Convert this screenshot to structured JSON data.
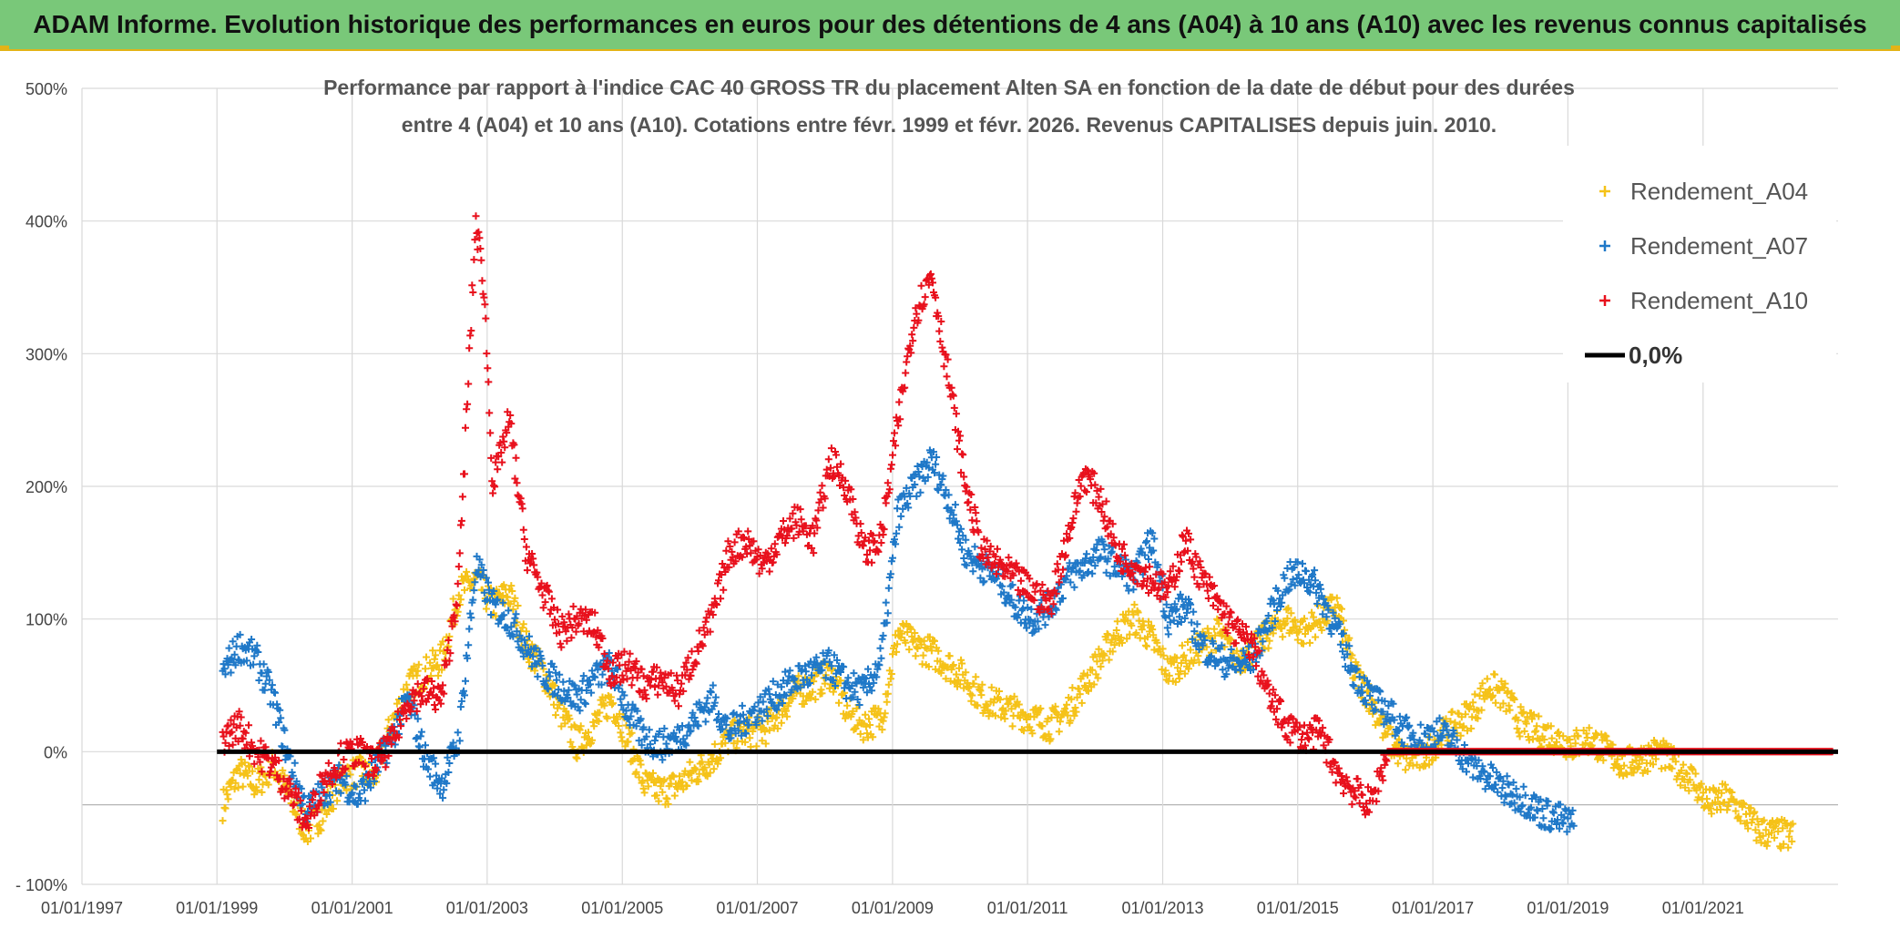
{
  "banner": {
    "title": "ADAM Informe. Evolution historique des performances en euros pour des détentions de 4 ans (A04) à 10 ans (A10) avec les revenus connus capitalisés"
  },
  "chart_data": {
    "type": "scatter",
    "title_line1": "Performance par rapport à l'indice CAC 40 GROSS TR  du placement Alten SA en fonction de la date de début pour des durées",
    "title_line2": "entre 4 (A04) et 10 ans (A10). Cotations entre févr. 1999 et févr. 2026. Revenus CAPITALISES depuis juin. 2010.",
    "xlabel": "",
    "ylabel": "",
    "xlim": [
      "1997-01-01",
      "2023-01-01"
    ],
    "ylim": [
      -100,
      500
    ],
    "x_ticks": [
      "01/01/1997",
      "01/01/1999",
      "01/01/2001",
      "01/01/2003",
      "01/01/2005",
      "01/01/2007",
      "01/01/2009",
      "01/01/2011",
      "01/01/2013",
      "01/01/2015",
      "01/01/2017",
      "01/01/2019",
      "01/01/2021"
    ],
    "y_ticks": [
      "- 100%",
      "0%",
      "100%",
      "200%",
      "300%",
      "400%",
      "500%"
    ],
    "y_tick_values": [
      -100,
      0,
      100,
      200,
      300,
      400,
      500
    ],
    "grid": true,
    "legend_position": "top-right",
    "colors": {
      "Rendement_A04": "#f5c218",
      "Rendement_A07": "#1f78c8",
      "Rendement_A10": "#e8101c",
      "zero_line": "#000000"
    },
    "series": [
      {
        "name": "Rendement_A04",
        "marker": "+",
        "points": [
          [
            "1999-02-01",
            -40
          ],
          [
            "1999-05-01",
            -15
          ],
          [
            "1999-08-01",
            -25
          ],
          [
            "1999-11-01",
            -10
          ],
          [
            "2000-02-01",
            -35
          ],
          [
            "2000-05-01",
            -60
          ],
          [
            "2000-08-01",
            -45
          ],
          [
            "2000-11-01",
            -20
          ],
          [
            "2001-02-01",
            -15
          ],
          [
            "2001-05-01",
            -20
          ],
          [
            "2001-08-01",
            20
          ],
          [
            "2001-11-01",
            50
          ],
          [
            "2002-02-01",
            60
          ],
          [
            "2002-05-01",
            70
          ],
          [
            "2002-08-01",
            120
          ],
          [
            "2002-11-01",
            130
          ],
          [
            "2003-02-01",
            110
          ],
          [
            "2003-05-01",
            120
          ],
          [
            "2003-08-01",
            80
          ],
          [
            "2003-11-01",
            60
          ],
          [
            "2004-02-01",
            30
          ],
          [
            "2004-05-01",
            5
          ],
          [
            "2004-08-01",
            20
          ],
          [
            "2004-11-01",
            40
          ],
          [
            "2005-02-01",
            10
          ],
          [
            "2005-05-01",
            -25
          ],
          [
            "2005-08-01",
            -30
          ],
          [
            "2005-11-01",
            -25
          ],
          [
            "2006-02-01",
            -15
          ],
          [
            "2006-05-01",
            -5
          ],
          [
            "2006-08-01",
            10
          ],
          [
            "2006-11-01",
            15
          ],
          [
            "2007-02-01",
            15
          ],
          [
            "2007-05-01",
            30
          ],
          [
            "2007-08-01",
            45
          ],
          [
            "2007-11-01",
            50
          ],
          [
            "2008-02-01",
            60
          ],
          [
            "2008-05-01",
            30
          ],
          [
            "2008-08-01",
            20
          ],
          [
            "2008-11-01",
            25
          ],
          [
            "2009-02-01",
            90
          ],
          [
            "2009-05-01",
            80
          ],
          [
            "2009-08-01",
            75
          ],
          [
            "2009-11-01",
            65
          ],
          [
            "2010-02-01",
            55
          ],
          [
            "2010-05-01",
            40
          ],
          [
            "2010-08-01",
            35
          ],
          [
            "2010-11-01",
            30
          ],
          [
            "2011-02-01",
            25
          ],
          [
            "2011-05-01",
            20
          ],
          [
            "2011-08-01",
            30
          ],
          [
            "2011-11-01",
            50
          ],
          [
            "2012-02-01",
            70
          ],
          [
            "2012-05-01",
            90
          ],
          [
            "2012-08-01",
            100
          ],
          [
            "2012-11-01",
            85
          ],
          [
            "2013-02-01",
            60
          ],
          [
            "2013-05-01",
            70
          ],
          [
            "2013-08-01",
            80
          ],
          [
            "2013-11-01",
            90
          ],
          [
            "2014-02-01",
            70
          ],
          [
            "2014-05-01",
            75
          ],
          [
            "2014-08-01",
            90
          ],
          [
            "2014-11-01",
            100
          ],
          [
            "2015-02-01",
            90
          ],
          [
            "2015-05-01",
            100
          ],
          [
            "2015-08-01",
            110
          ],
          [
            "2015-11-01",
            60
          ],
          [
            "2016-02-01",
            40
          ],
          [
            "2016-05-01",
            10
          ],
          [
            "2016-08-01",
            -5
          ],
          [
            "2016-11-01",
            -5
          ],
          [
            "2017-02-01",
            10
          ],
          [
            "2017-05-01",
            20
          ],
          [
            "2017-08-01",
            30
          ],
          [
            "2017-11-01",
            50
          ],
          [
            "2018-02-01",
            40
          ],
          [
            "2018-05-01",
            20
          ],
          [
            "2018-08-01",
            15
          ],
          [
            "2018-11-01",
            10
          ],
          [
            "2019-02-01",
            5
          ],
          [
            "2019-05-01",
            10
          ],
          [
            "2019-08-01",
            0
          ],
          [
            "2019-11-01",
            -10
          ],
          [
            "2020-02-01",
            -5
          ],
          [
            "2020-05-01",
            0
          ],
          [
            "2020-08-01",
            -10
          ],
          [
            "2020-11-01",
            -20
          ],
          [
            "2021-02-01",
            -40
          ],
          [
            "2021-05-01",
            -35
          ],
          [
            "2021-08-01",
            -45
          ],
          [
            "2021-11-01",
            -60
          ],
          [
            "2022-02-01",
            -62
          ],
          [
            "2022-05-01",
            -64
          ]
        ]
      },
      {
        "name": "Rendement_A07",
        "marker": "+",
        "points": [
          [
            "1999-02-01",
            60
          ],
          [
            "1999-05-01",
            80
          ],
          [
            "1999-08-01",
            70
          ],
          [
            "1999-11-01",
            40
          ],
          [
            "2000-02-01",
            -10
          ],
          [
            "2000-05-01",
            -45
          ],
          [
            "2000-08-01",
            -30
          ],
          [
            "2000-11-01",
            -20
          ],
          [
            "2001-02-01",
            -35
          ],
          [
            "2001-05-01",
            -15
          ],
          [
            "2001-08-01",
            10
          ],
          [
            "2001-11-01",
            40
          ],
          [
            "2002-02-01",
            -5
          ],
          [
            "2002-05-01",
            -25
          ],
          [
            "2002-08-01",
            10
          ],
          [
            "2002-11-01",
            140
          ],
          [
            "2003-02-01",
            110
          ],
          [
            "2003-05-01",
            100
          ],
          [
            "2003-08-01",
            80
          ],
          [
            "2003-11-01",
            60
          ],
          [
            "2004-02-01",
            50
          ],
          [
            "2004-05-01",
            40
          ],
          [
            "2004-08-01",
            55
          ],
          [
            "2004-11-01",
            65
          ],
          [
            "2005-02-01",
            30
          ],
          [
            "2005-05-01",
            10
          ],
          [
            "2005-08-01",
            5
          ],
          [
            "2005-11-01",
            10
          ],
          [
            "2006-02-01",
            25
          ],
          [
            "2006-05-01",
            40
          ],
          [
            "2006-08-01",
            15
          ],
          [
            "2006-11-01",
            25
          ],
          [
            "2007-02-01",
            35
          ],
          [
            "2007-05-01",
            45
          ],
          [
            "2007-08-01",
            55
          ],
          [
            "2007-11-01",
            60
          ],
          [
            "2008-02-01",
            65
          ],
          [
            "2008-05-01",
            50
          ],
          [
            "2008-08-01",
            45
          ],
          [
            "2008-11-01",
            70
          ],
          [
            "2009-02-01",
            180
          ],
          [
            "2009-05-01",
            200
          ],
          [
            "2009-08-01",
            220
          ],
          [
            "2009-11-01",
            190
          ],
          [
            "2010-02-01",
            150
          ],
          [
            "2010-05-01",
            140
          ],
          [
            "2010-08-01",
            130
          ],
          [
            "2010-11-01",
            110
          ],
          [
            "2011-02-01",
            100
          ],
          [
            "2011-05-01",
            110
          ],
          [
            "2011-08-01",
            130
          ],
          [
            "2011-11-01",
            140
          ],
          [
            "2012-02-01",
            150
          ],
          [
            "2012-05-01",
            140
          ],
          [
            "2012-08-01",
            130
          ],
          [
            "2012-11-01",
            160
          ],
          [
            "2013-02-01",
            100
          ],
          [
            "2013-05-01",
            110
          ],
          [
            "2013-08-01",
            80
          ],
          [
            "2013-11-01",
            70
          ],
          [
            "2014-02-01",
            65
          ],
          [
            "2014-05-01",
            70
          ],
          [
            "2014-08-01",
            100
          ],
          [
            "2014-11-01",
            130
          ],
          [
            "2015-02-01",
            135
          ],
          [
            "2015-05-01",
            120
          ],
          [
            "2015-08-01",
            90
          ],
          [
            "2015-11-01",
            60
          ],
          [
            "2016-02-01",
            40
          ],
          [
            "2016-05-01",
            30
          ],
          [
            "2016-08-01",
            15
          ],
          [
            "2016-11-01",
            10
          ],
          [
            "2017-02-01",
            15
          ],
          [
            "2017-05-01",
            5
          ],
          [
            "2017-08-01",
            -10
          ],
          [
            "2017-11-01",
            -20
          ],
          [
            "2018-02-01",
            -30
          ],
          [
            "2018-05-01",
            -35
          ],
          [
            "2018-08-01",
            -45
          ],
          [
            "2018-11-01",
            -50
          ],
          [
            "2019-02-01",
            -55
          ]
        ]
      },
      {
        "name": "Rendement_A10",
        "marker": "+",
        "points": [
          [
            "1999-02-01",
            10
          ],
          [
            "1999-05-01",
            20
          ],
          [
            "1999-08-01",
            0
          ],
          [
            "1999-11-01",
            -10
          ],
          [
            "2000-02-01",
            -30
          ],
          [
            "2000-05-01",
            -55
          ],
          [
            "2000-08-01",
            -20
          ],
          [
            "2000-11-01",
            -5
          ],
          [
            "2001-02-01",
            0
          ],
          [
            "2001-05-01",
            -10
          ],
          [
            "2001-08-01",
            5
          ],
          [
            "2001-11-01",
            40
          ],
          [
            "2002-02-01",
            45
          ],
          [
            "2002-05-01",
            40
          ],
          [
            "2002-08-01",
            130
          ],
          [
            "2002-11-01",
            400
          ],
          [
            "2002-12-15",
            350
          ],
          [
            "2003-02-01",
            200
          ],
          [
            "2003-05-01",
            250
          ],
          [
            "2003-08-01",
            150
          ],
          [
            "2003-11-01",
            120
          ],
          [
            "2004-02-01",
            90
          ],
          [
            "2004-05-01",
            100
          ],
          [
            "2004-08-01",
            95
          ],
          [
            "2004-11-01",
            60
          ],
          [
            "2005-02-01",
            65
          ],
          [
            "2005-05-01",
            50
          ],
          [
            "2005-08-01",
            55
          ],
          [
            "2005-11-01",
            45
          ],
          [
            "2006-02-01",
            75
          ],
          [
            "2006-05-01",
            100
          ],
          [
            "2006-08-01",
            150
          ],
          [
            "2006-11-01",
            160
          ],
          [
            "2007-02-01",
            140
          ],
          [
            "2007-05-01",
            160
          ],
          [
            "2007-08-01",
            175
          ],
          [
            "2007-11-01",
            160
          ],
          [
            "2008-02-01",
            220
          ],
          [
            "2008-05-01",
            200
          ],
          [
            "2008-08-01",
            150
          ],
          [
            "2008-11-01",
            160
          ],
          [
            "2009-02-01",
            250
          ],
          [
            "2009-05-01",
            330
          ],
          [
            "2009-08-01",
            360
          ],
          [
            "2009-11-01",
            280
          ],
          [
            "2010-02-01",
            200
          ],
          [
            "2010-05-01",
            150
          ],
          [
            "2010-08-01",
            140
          ],
          [
            "2010-11-01",
            130
          ],
          [
            "2011-02-01",
            120
          ],
          [
            "2011-05-01",
            110
          ],
          [
            "2011-08-01",
            160
          ],
          [
            "2011-11-01",
            210
          ],
          [
            "2012-02-01",
            190
          ],
          [
            "2012-05-01",
            150
          ],
          [
            "2012-08-01",
            140
          ],
          [
            "2012-11-01",
            130
          ],
          [
            "2013-02-01",
            120
          ],
          [
            "2013-05-01",
            160
          ],
          [
            "2013-08-01",
            130
          ],
          [
            "2013-11-01",
            110
          ],
          [
            "2014-02-01",
            90
          ],
          [
            "2014-05-01",
            80
          ],
          [
            "2014-08-01",
            40
          ],
          [
            "2014-11-01",
            20
          ],
          [
            "2015-02-01",
            10
          ],
          [
            "2015-05-01",
            15
          ],
          [
            "2015-08-01",
            -15
          ],
          [
            "2015-11-01",
            -30
          ],
          [
            "2016-02-01",
            -40
          ],
          [
            "2016-05-01",
            0
          ],
          [
            "2017-01-01",
            0
          ],
          [
            "2018-01-01",
            0
          ],
          [
            "2019-01-01",
            0
          ],
          [
            "2020-01-01",
            0
          ],
          [
            "2021-01-01",
            0
          ],
          [
            "2022-01-01",
            0
          ],
          [
            "2022-12-01",
            0
          ]
        ]
      }
    ],
    "reference_line": {
      "name": "0,0%",
      "value": 0,
      "from": "1999-01-01",
      "to": "2023-01-01"
    }
  }
}
